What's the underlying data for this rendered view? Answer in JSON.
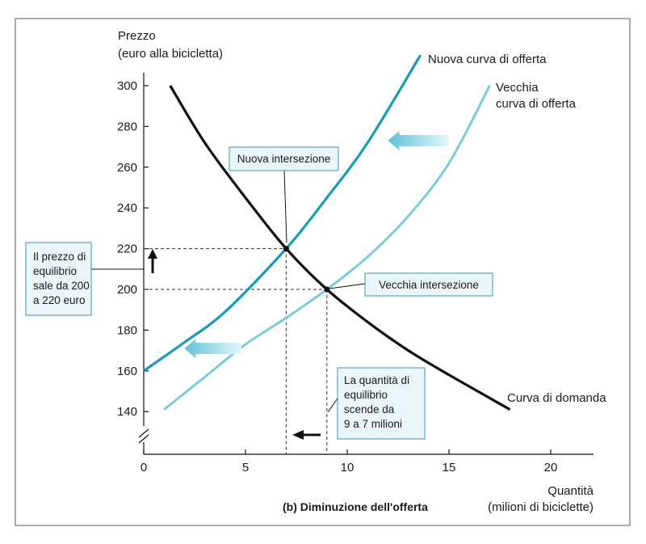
{
  "chart_data": {
    "type": "line",
    "subtitle": "(b) Diminuzione dell'offerta",
    "ylabel": [
      "Prezzo",
      "(euro alla bicicletta)"
    ],
    "xlabel": [
      "Quantità",
      "(milioni di biciclette)"
    ],
    "xlim": [
      0,
      22
    ],
    "ylim": [
      130,
      310
    ],
    "x_ticks": [
      0,
      5,
      10,
      15,
      20
    ],
    "y_ticks": [
      140,
      160,
      180,
      200,
      220,
      240,
      260,
      280,
      300
    ],
    "grid": false,
    "series": [
      {
        "name": "Curva di domanda",
        "color": "#111111",
        "points": [
          [
            1.3,
            300
          ],
          [
            3,
            272
          ],
          [
            5,
            245
          ],
          [
            7,
            220
          ],
          [
            9,
            200
          ],
          [
            11,
            184
          ],
          [
            13,
            170
          ],
          [
            15,
            158
          ],
          [
            18,
            141
          ]
        ]
      },
      {
        "name": "Nuova curva di offerta",
        "color": "#1a9cb0",
        "points": [
          [
            0,
            160
          ],
          [
            2,
            174
          ],
          [
            4,
            189
          ],
          [
            7,
            220
          ],
          [
            9,
            245
          ],
          [
            11,
            272
          ],
          [
            13.6,
            315
          ]
        ]
      },
      {
        "name": "Vecchia curva di offerta",
        "color": "#7ccbd8",
        "points": [
          [
            1,
            141
          ],
          [
            3,
            157
          ],
          [
            5,
            173
          ],
          [
            7,
            186
          ],
          [
            9,
            200
          ],
          [
            11,
            216
          ],
          [
            13,
            236
          ],
          [
            15,
            262
          ],
          [
            17,
            300
          ]
        ]
      }
    ],
    "series_labels": {
      "nuova": [
        "Nuova curva di offerta"
      ],
      "vecchia": [
        "Vecchia",
        "curva di offerta"
      ],
      "domanda": [
        "Curva di domanda"
      ]
    },
    "intersections": [
      {
        "label": "Nuova intersezione",
        "x": 7,
        "y": 220
      },
      {
        "label": "Vecchia intersezione",
        "x": 9,
        "y": 200
      }
    ],
    "annotations": {
      "price": [
        "Il prezzo di",
        "equilibrio",
        "sale da 200",
        "a 220 euro"
      ],
      "quantity": [
        "La quantità di",
        "equilibrio",
        "scende da",
        "9 a 7 milioni"
      ]
    },
    "shift_arrows": [
      {
        "from": [
          15,
          273
        ],
        "to": [
          12,
          273
        ],
        "direction": "left"
      },
      {
        "from": [
          4.8,
          171
        ],
        "to": [
          2,
          171
        ],
        "direction": "left"
      }
    ],
    "colors": {
      "demand": "#111111",
      "new_supply": "#1a9cb0",
      "old_supply": "#7ccbd8",
      "box_fill": "#eaf6f9",
      "box_stroke": "#3c96ae"
    }
  }
}
